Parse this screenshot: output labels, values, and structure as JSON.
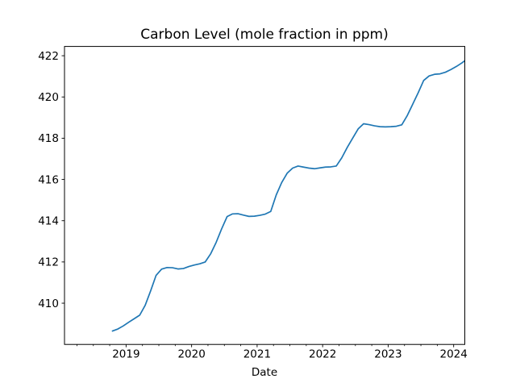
{
  "figure": {
    "background": "#ffffff"
  },
  "chart_data": {
    "type": "line",
    "title": "Carbon Level (mole fraction in ppm)",
    "xlabel": "Date",
    "ylabel": "",
    "line_color": "#1f77b4",
    "axis_color": "#000000",
    "grid": false,
    "legend": null,
    "xlim": [
      2018.06,
      2024.17
    ],
    "ylim": [
      408.0,
      422.45
    ],
    "x_tick_values": [
      2019,
      2020,
      2021,
      2022,
      2023,
      2024
    ],
    "x_tick_labels": [
      "2019",
      "2020",
      "2021",
      "2022",
      "2023",
      "2024"
    ],
    "x_minor_tick_step": 0.25,
    "y_tick_values": [
      410,
      412,
      414,
      416,
      418,
      420,
      422
    ],
    "y_tick_labels": [
      "410",
      "412",
      "414",
      "416",
      "418",
      "420",
      "422"
    ],
    "x": [
      2018.792,
      2018.875,
      2018.958,
      2019.042,
      2019.125,
      2019.208,
      2019.292,
      2019.375,
      2019.458,
      2019.542,
      2019.625,
      2019.708,
      2019.792,
      2019.875,
      2019.958,
      2020.042,
      2020.125,
      2020.208,
      2020.292,
      2020.375,
      2020.458,
      2020.542,
      2020.625,
      2020.708,
      2020.792,
      2020.875,
      2020.958,
      2021.042,
      2021.125,
      2021.208,
      2021.292,
      2021.375,
      2021.458,
      2021.542,
      2021.625,
      2021.708,
      2021.792,
      2021.875,
      2021.958,
      2022.042,
      2022.125,
      2022.208,
      2022.292,
      2022.375,
      2022.458,
      2022.542,
      2022.625,
      2022.708,
      2022.792,
      2022.875,
      2022.958,
      2023.042,
      2023.125,
      2023.208,
      2023.292,
      2023.375,
      2023.458,
      2023.542,
      2023.625,
      2023.708,
      2023.792,
      2023.875,
      2023.958,
      2024.042,
      2024.125,
      2024.208
    ],
    "y": [
      408.65,
      408.75,
      408.9,
      409.08,
      409.25,
      409.42,
      409.9,
      410.6,
      411.35,
      411.65,
      411.73,
      411.72,
      411.66,
      411.68,
      411.78,
      411.85,
      411.91,
      412.0,
      412.4,
      412.95,
      413.6,
      414.2,
      414.33,
      414.34,
      414.27,
      414.21,
      414.22,
      414.26,
      414.32,
      414.45,
      415.25,
      415.85,
      416.3,
      416.55,
      416.65,
      416.6,
      416.55,
      416.52,
      416.56,
      416.6,
      416.61,
      416.65,
      417.05,
      417.55,
      418.0,
      418.45,
      418.7,
      418.66,
      418.6,
      418.56,
      418.55,
      418.56,
      418.58,
      418.65,
      419.1,
      419.65,
      420.2,
      420.8,
      421.02,
      421.1,
      421.12,
      421.2,
      421.33,
      421.48,
      421.65,
      421.85
    ]
  }
}
